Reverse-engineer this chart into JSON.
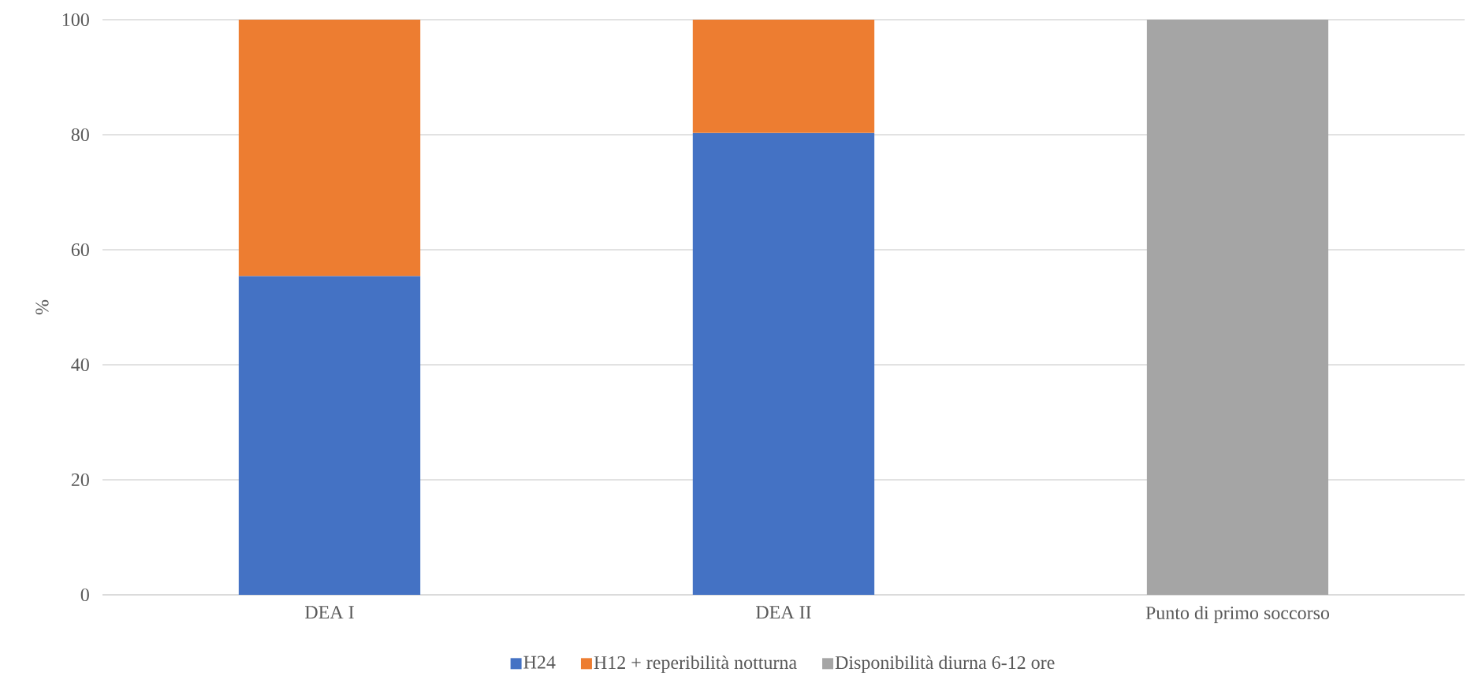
{
  "chart_data": {
    "type": "bar",
    "stacked": true,
    "ylabel": "%",
    "categories": [
      "DEA I",
      "DEA II",
      "Punto di primo soccorso"
    ],
    "series": [
      {
        "name": "H24",
        "color": "#4472c4",
        "values": [
          55.4,
          80.3,
          0
        ]
      },
      {
        "name": "H12 + reperibilità notturna",
        "color": "#ed7d31",
        "values": [
          44.6,
          19.7,
          0
        ]
      },
      {
        "name": "Disponibilità diurna 6-12 ore",
        "color": "#a5a5a5",
        "values": [
          0,
          0,
          100
        ]
      }
    ],
    "ylim": [
      0,
      100
    ],
    "yticks": [
      0,
      20,
      40,
      60,
      80,
      100
    ],
    "grid": "y",
    "legend": "bottom"
  }
}
